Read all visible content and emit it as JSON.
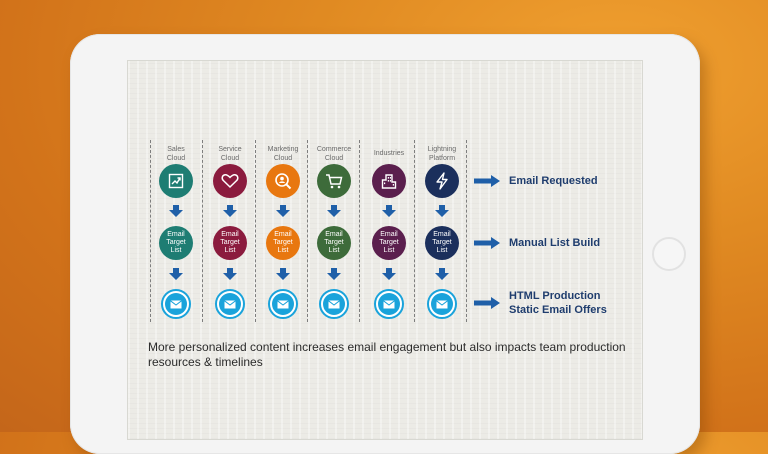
{
  "columns": [
    {
      "label": "Sales\nCloud",
      "color": "#1e7d73",
      "icon": "chart-growth-icon",
      "list_color": "#1e7d73"
    },
    {
      "label": "Service\nCloud",
      "color": "#8b1b3e",
      "icon": "heart-icon",
      "list_color": "#8b1b3e"
    },
    {
      "label": "Marketing\nCloud",
      "color": "#e8770f",
      "icon": "magnifier-person-icon",
      "list_color": "#e8770f"
    },
    {
      "label": "Commerce\nCloud",
      "color": "#3d6b3a",
      "icon": "shopping-cart-icon",
      "list_color": "#3d6b3a"
    },
    {
      "label": "Industries",
      "color": "#5b1f4e",
      "icon": "building-icon",
      "list_color": "#5b1f4e"
    },
    {
      "label": "Lightning\nPlatform",
      "color": "#1b2f5c",
      "icon": "lightning-icon",
      "list_color": "#1b2f5c"
    }
  ],
  "list_node_text": "Email\nTarget\nList",
  "rows": {
    "row1_label": "Email Requested",
    "row2_label": "Manual List Build",
    "row3_label_line1": "HTML Production",
    "row3_label_line2": "Static Email Offers"
  },
  "caption": "More personalized content increases email engagement but also impacts team production resources & timelines",
  "colors": {
    "arrow": "#1f5fa8",
    "mail": "#1aa3db",
    "label_text": "#1f3d6e"
  }
}
